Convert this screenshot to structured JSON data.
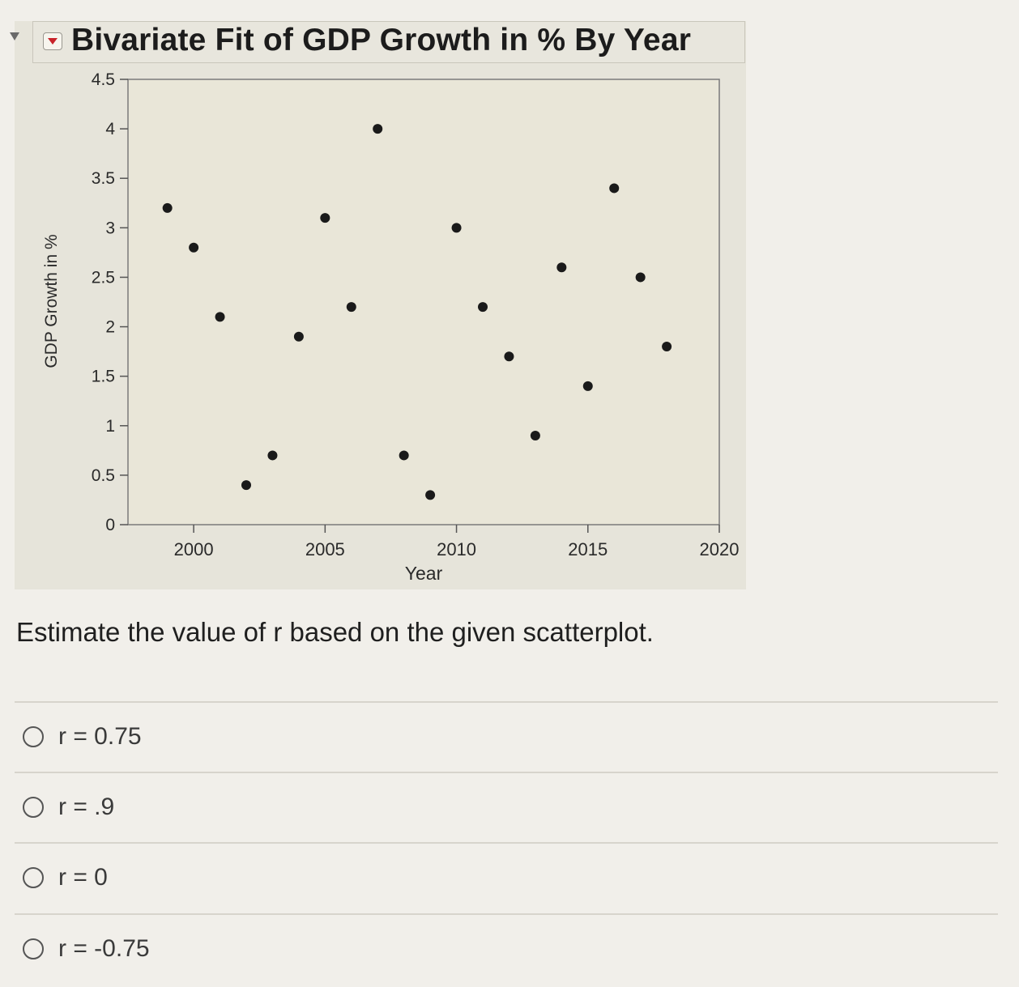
{
  "header": {
    "title": "Bivariate Fit of GDP Growth in % By Year"
  },
  "chart_data": {
    "type": "scatter",
    "title": "Bivariate Fit of GDP Growth in % By Year",
    "xlabel": "Year",
    "ylabel": "GDP Growth in %",
    "xlim": [
      1997.5,
      2020
    ],
    "ylim": [
      0,
      4.5
    ],
    "xticks": [
      2000,
      2005,
      2010,
      2015,
      2020
    ],
    "yticks": [
      0,
      0.5,
      1,
      1.5,
      2,
      2.5,
      3,
      3.5,
      4,
      4.5
    ],
    "ytick_labels": [
      "0",
      "0.5",
      "1",
      "1.5",
      "2",
      "2.5",
      "3",
      "3.5",
      "4",
      "4.5"
    ],
    "x": [
      1999,
      2000,
      2001,
      2002,
      2003,
      2004,
      2005,
      2006,
      2007,
      2008,
      2009,
      2010,
      2011,
      2012,
      2013,
      2014,
      2015,
      2016,
      2017,
      2018
    ],
    "y": [
      3.2,
      2.8,
      2.1,
      0.4,
      0.7,
      1.9,
      3.1,
      2.2,
      4.0,
      0.7,
      0.3,
      3.0,
      2.2,
      1.7,
      0.9,
      2.6,
      1.4,
      3.4,
      2.5,
      1.8
    ],
    "grid": false,
    "colors": {
      "point": "#1a1a1a",
      "plot_bg": "#e9e6d8",
      "frame": "#7a7a7a"
    }
  },
  "question": {
    "text": "Estimate the value of r based on the given scatterplot."
  },
  "options": [
    {
      "label": "r = 0.75"
    },
    {
      "label": "r = .9"
    },
    {
      "label": "r = 0"
    },
    {
      "label": "r = -0.75"
    }
  ]
}
